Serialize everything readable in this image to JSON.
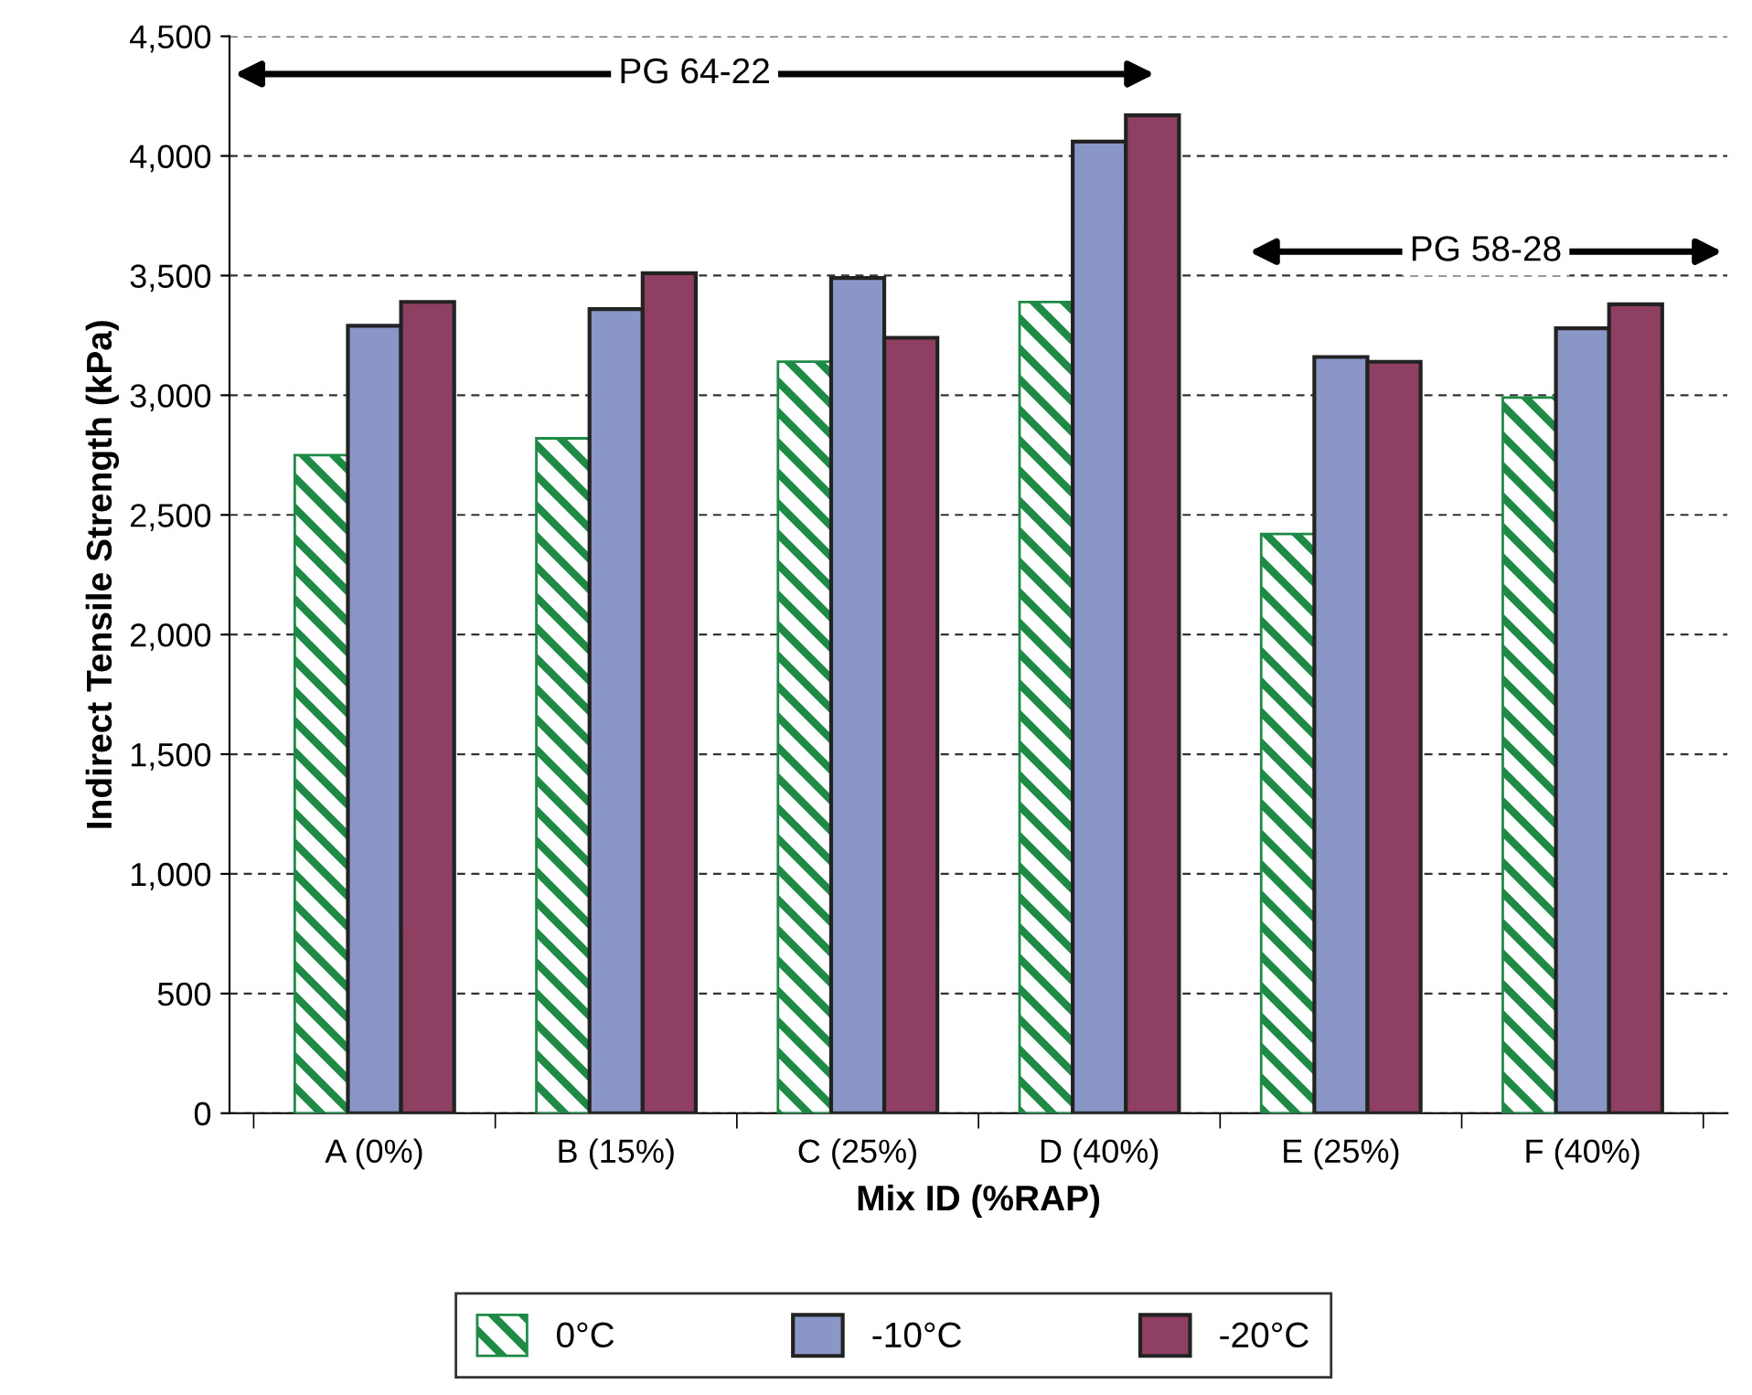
{
  "chart_data": {
    "type": "bar",
    "xlabel": "Mix ID (%RAP)",
    "ylabel": "Indirect Tensile Strength (kPa)",
    "categories": [
      "A (0%)",
      "B (15%)",
      "C (25%)",
      "D (40%)",
      "E (25%)",
      "F (40%)"
    ],
    "series": [
      {
        "name": "0°C",
        "color": "#1e8a46",
        "values": [
          2750,
          2820,
          3140,
          3390,
          2420,
          2990
        ]
      },
      {
        "name": "-10°C",
        "color": "#8a96c6",
        "values": [
          3290,
          3360,
          3490,
          4060,
          3160,
          3280
        ]
      },
      {
        "name": "-20°C",
        "color": "#8e3f62",
        "values": [
          3390,
          3510,
          3240,
          4170,
          3140,
          3380
        ]
      }
    ],
    "ylim": [
      0,
      4500
    ],
    "yticks": [
      0,
      500,
      {
        "value": 1000,
        "label": "1,000"
      },
      {
        "value": 1500,
        "label": "1,500"
      },
      {
        "value": 2000,
        "label": "2,000"
      },
      {
        "value": 2500,
        "label": "2,500"
      },
      {
        "value": 3000,
        "label": "3,000"
      },
      {
        "value": 3500,
        "label": "3,500"
      },
      {
        "value": 4000,
        "label": "4,000"
      },
      {
        "value": 4500,
        "label": "4,500"
      }
    ],
    "grid": "y",
    "legend": "bottom",
    "annotations": [
      "PG 64-22",
      "PG 58-28"
    ]
  }
}
